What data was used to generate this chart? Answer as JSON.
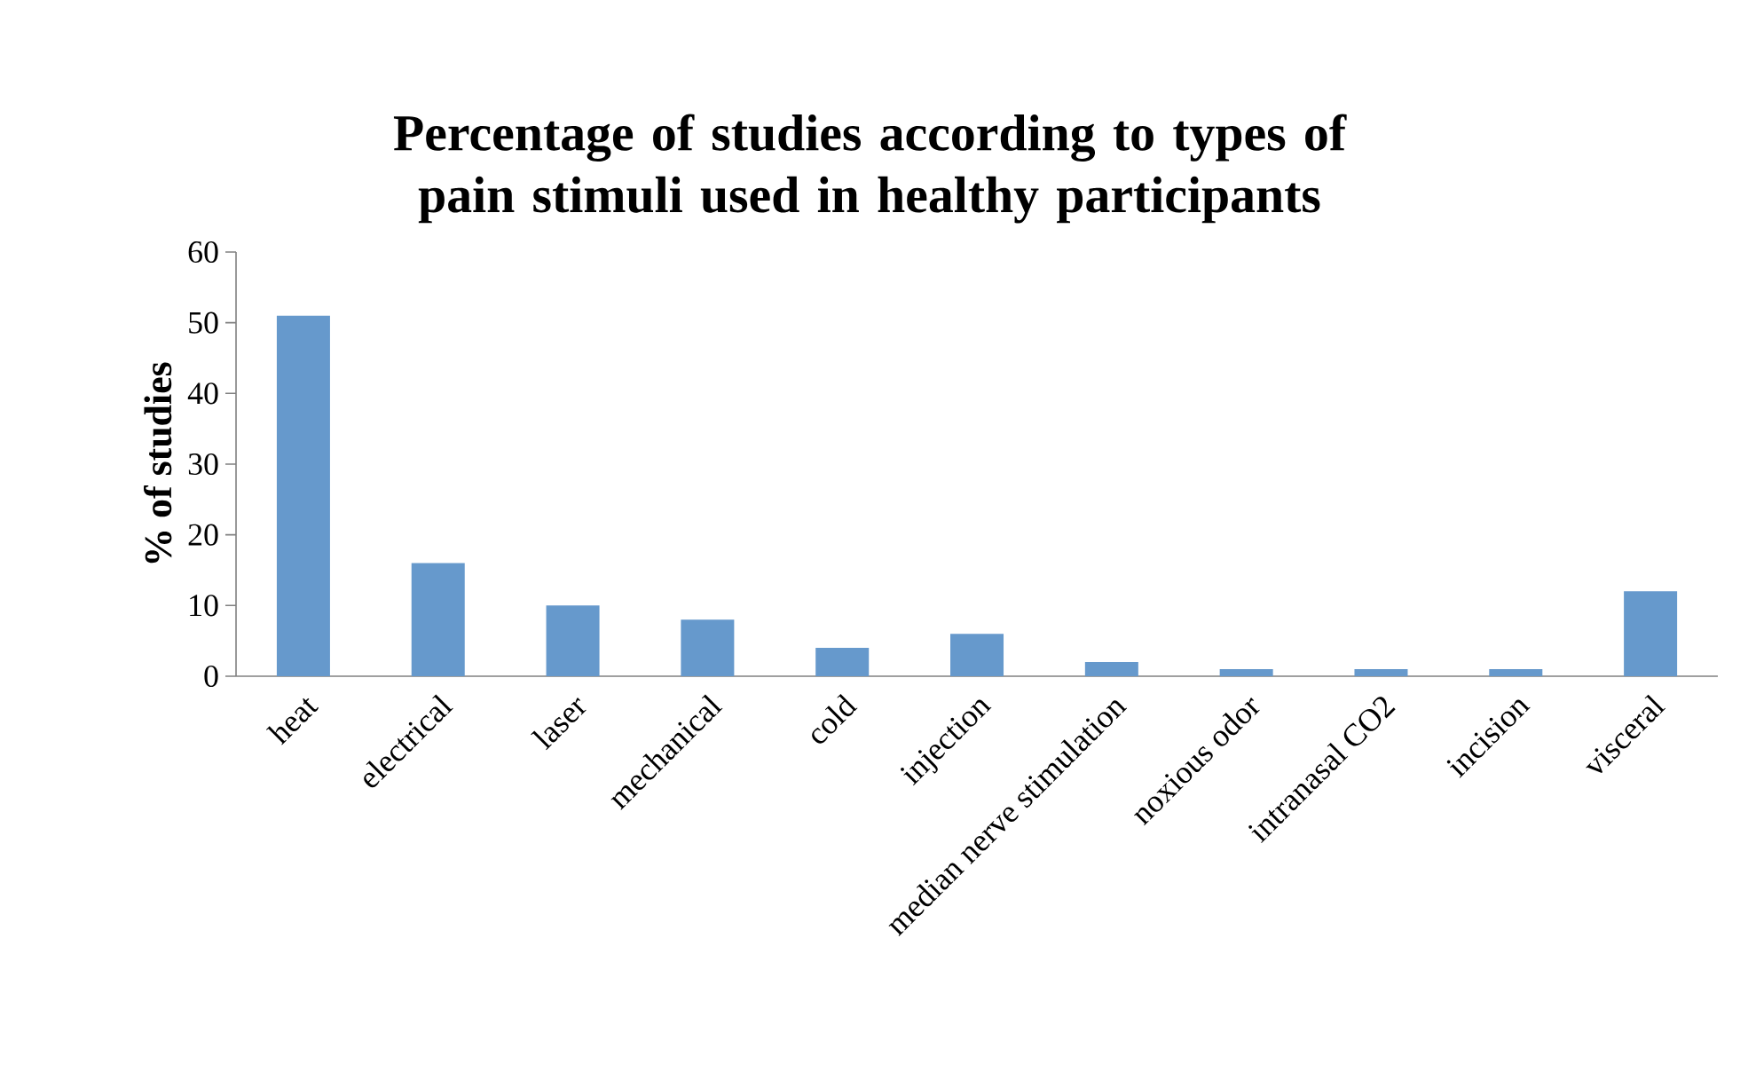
{
  "chart_data": {
    "type": "bar",
    "title": "Percentage of studies according to types of pain stimuli used in healthy participants",
    "ylabel": "% of studies",
    "categories": [
      "heat",
      "electrical",
      "laser",
      "mechanical",
      "cold",
      "injection",
      "median nerve stimulation",
      "noxious odor",
      "intranasal CO2",
      "incision",
      "visceral"
    ],
    "values": [
      51,
      16,
      10,
      8,
      4,
      6,
      2,
      1,
      1,
      1,
      12
    ],
    "color": "#6699cc",
    "ylim": [
      0,
      60
    ],
    "yticks": [
      0,
      10,
      20,
      30,
      40,
      50,
      60
    ],
    "grid": false
  }
}
